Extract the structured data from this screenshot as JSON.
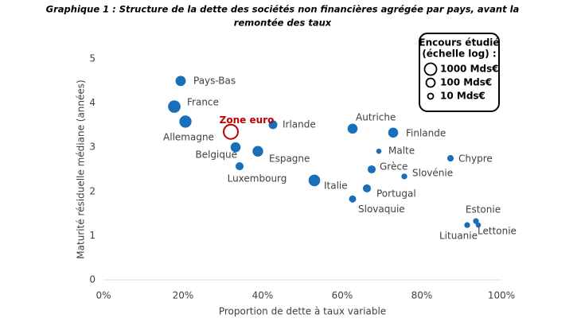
{
  "chart_data": {
    "type": "scatter",
    "title": [
      "Graphique 1 : Structure de la dette des sociétés non financières agrégée par pays, avant la",
      "remontée des taux"
    ],
    "x_label": "Proportion de dette à taux variable",
    "y_label": "Maturité résiduelle médiane (années)",
    "color": "#1a6fba",
    "size_scale": "log",
    "categories": [
      "Pays-Bas",
      "France",
      "Allemagne",
      "Irlande",
      "Belgique",
      "Espagne",
      "Luxembourg",
      "Italie",
      "Autriche",
      "Finlande",
      "Malte",
      "Grèce",
      "Slovénie",
      "Chypre",
      "Portugal",
      "Slovaquie",
      "Estonie",
      "Lettonie",
      "Lituanie"
    ],
    "x": [
      19.4,
      17.8,
      20.6,
      42.6,
      33.2,
      38.8,
      34.2,
      53,
      62.6,
      72.8,
      69.2,
      67.4,
      75.6,
      87.2,
      66.2,
      62.6,
      93.6,
      94.2,
      91.4
    ],
    "values": [
      4.5,
      3.92,
      3.58,
      3.51,
      3.0,
      2.91,
      2.57,
      2.25,
      3.42,
      3.33,
      2.91,
      2.5,
      2.34,
      2.75,
      2.07,
      1.83,
      1.33,
      1.24,
      1.24
    ],
    "sizes": [
      300,
      1500,
      1200,
      100,
      250,
      400,
      60,
      800,
      250,
      250,
      8,
      60,
      12,
      20,
      60,
      30,
      12,
      8,
      12
    ],
    "reference": {
      "name": "Zone euro",
      "x": 32,
      "value": 3.35,
      "size": 5600,
      "color": "#c00000"
    },
    "xlim": [
      0,
      100
    ],
    "xticks": [
      {
        "value": 0,
        "label": "0%"
      },
      {
        "value": 20,
        "label": "20%"
      },
      {
        "value": 40,
        "label": "40%"
      },
      {
        "value": 60,
        "label": "60%"
      },
      {
        "value": 80,
        "label": "80%"
      },
      {
        "value": 100,
        "label": "100%"
      }
    ],
    "ylim": [
      0,
      5
    ],
    "yticks": [
      0,
      1,
      2,
      3,
      4,
      5
    ],
    "size_legend": {
      "title": [
        "Encours étudié",
        "(échelle log) :"
      ],
      "entries": [
        {
          "value": 1000,
          "label": "1000 Mds€"
        },
        {
          "value": 100,
          "label": "100 Mds€"
        },
        {
          "value": 10,
          "label": "10 Mds€"
        }
      ]
    }
  }
}
